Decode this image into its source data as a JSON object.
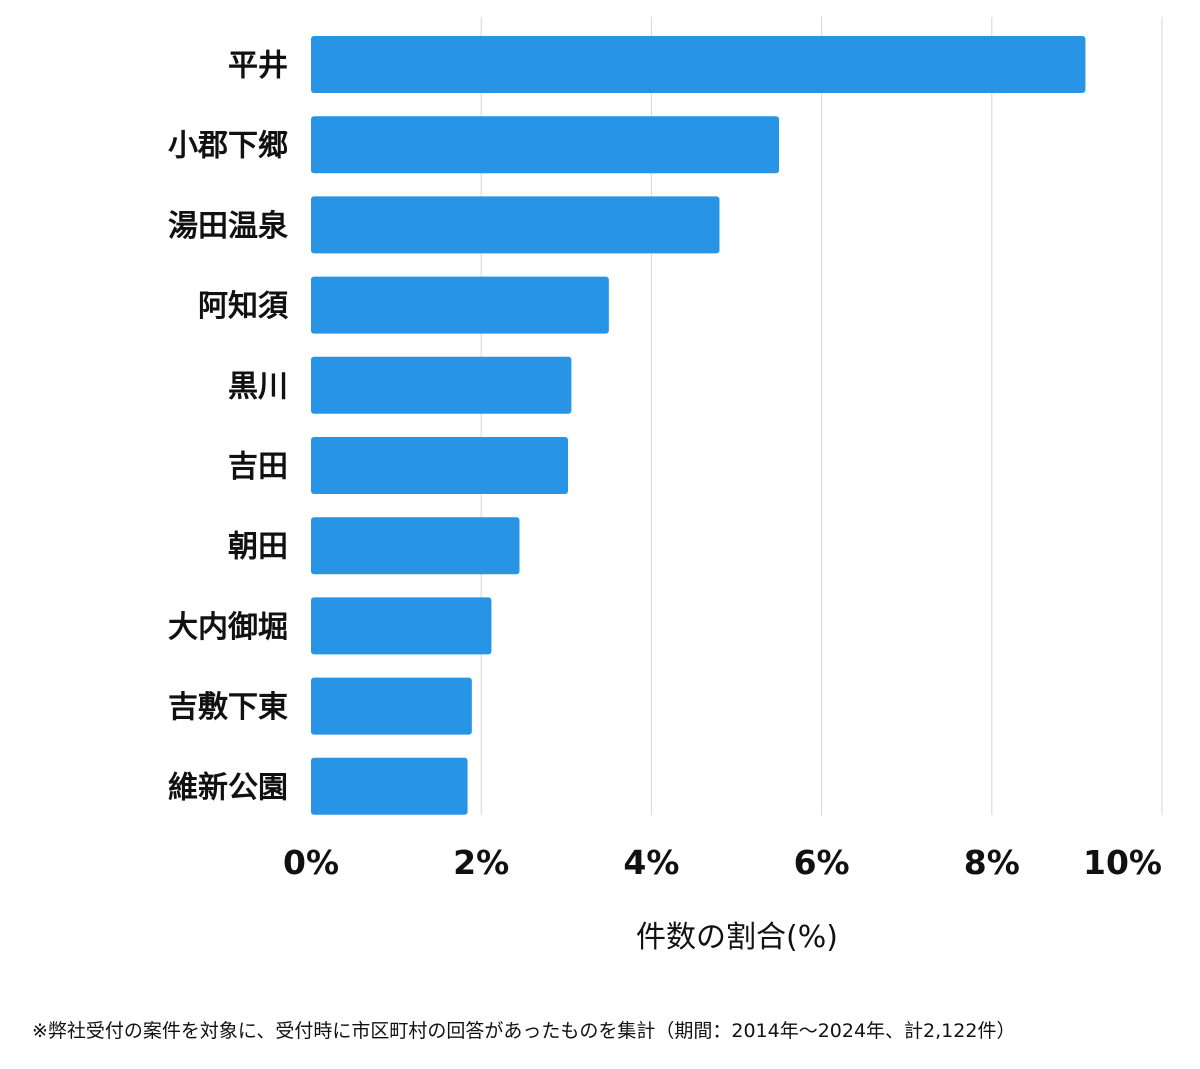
{
  "chart_data": {
    "type": "bar",
    "orientation": "horizontal",
    "categories": [
      "平井",
      "小郡下郷",
      "湯田温泉",
      "阿知須",
      "黒川",
      "吉田",
      "朝田",
      "大内御堀",
      "吉敷下東",
      "維新公園"
    ],
    "values": [
      9.1,
      5.5,
      4.8,
      3.5,
      3.06,
      3.02,
      2.45,
      2.12,
      1.89,
      1.84
    ],
    "xlabel": "件数の割合(%)",
    "ylabel": "",
    "xlim": [
      0,
      10
    ],
    "x_ticks": [
      "0%",
      "2%",
      "4%",
      "6%",
      "8%",
      "10%"
    ],
    "grid": true,
    "bar_color": "#2794e6"
  },
  "footnote": "※弊社受付の案件を対象に、受付時に市区町村の回答があったものを集計（期間：2014年〜2024年、計2,122件）"
}
